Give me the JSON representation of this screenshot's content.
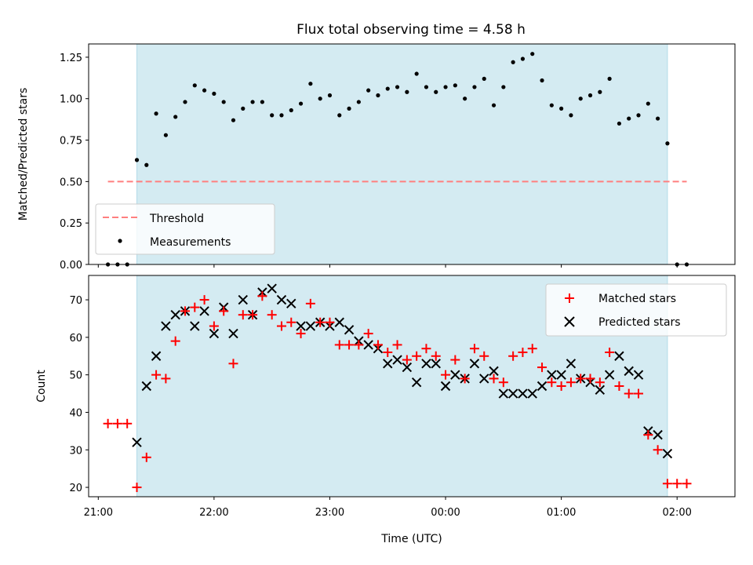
{
  "chart_data": {
    "type": "scatter",
    "title": "Flux total observing time = 4.58 h",
    "xlabel": "Time (UTC)",
    "x_ticks": [
      "21:00",
      "22:00",
      "23:00",
      "00:00",
      "01:00",
      "02:00"
    ],
    "x_range": [
      "20:55",
      "02:30"
    ],
    "shaded_interval": [
      "21:20",
      "01:55"
    ],
    "colors": {
      "shade": "#add8e6",
      "threshold": "#ff7f7f",
      "measurements": "#000000",
      "matched": "#ff0000",
      "predicted": "#000000"
    },
    "panels": [
      {
        "ylabel": "Matched/Predicted stars",
        "ylim": [
          0.0,
          1.33
        ],
        "y_ticks": [
          "0.00",
          "0.25",
          "0.50",
          "0.75",
          "1.00",
          "1.25"
        ],
        "legend": {
          "placement": "lower-left",
          "entries": [
            "Threshold",
            "Measurements"
          ]
        },
        "threshold": {
          "name": "Threshold",
          "y": 0.5,
          "x_start": "21:05",
          "x_end": "02:05"
        },
        "series": [
          {
            "name": "Measurements",
            "marker": "dot",
            "x": [
              "21:05",
              "21:10",
              "21:15",
              "21:20",
              "21:25",
              "21:30",
              "21:35",
              "21:40",
              "21:45",
              "21:50",
              "21:55",
              "22:00",
              "22:05",
              "22:10",
              "22:15",
              "22:20",
              "22:25",
              "22:30",
              "22:35",
              "22:40",
              "22:45",
              "22:50",
              "22:55",
              "23:00",
              "23:05",
              "23:10",
              "23:15",
              "23:20",
              "23:25",
              "23:30",
              "23:35",
              "23:40",
              "23:45",
              "23:50",
              "23:55",
              "00:00",
              "00:05",
              "00:10",
              "00:15",
              "00:20",
              "00:25",
              "00:30",
              "00:35",
              "00:40",
              "00:45",
              "00:50",
              "00:55",
              "01:00",
              "01:05",
              "01:10",
              "01:15",
              "01:20",
              "01:25",
              "01:30",
              "01:35",
              "01:40",
              "01:45",
              "01:50",
              "01:55",
              "02:00",
              "02:05"
            ],
            "y": [
              0.0,
              0.0,
              0.0,
              0.63,
              0.6,
              0.91,
              0.78,
              0.89,
              0.98,
              1.08,
              1.05,
              1.03,
              0.98,
              0.87,
              0.94,
              0.98,
              0.98,
              0.9,
              0.9,
              0.93,
              0.97,
              1.09,
              1.0,
              1.02,
              0.9,
              0.94,
              0.98,
              1.05,
              1.02,
              1.06,
              1.07,
              1.04,
              1.15,
              1.07,
              1.04,
              1.07,
              1.08,
              1.0,
              1.07,
              1.12,
              0.96,
              1.07,
              1.22,
              1.24,
              1.27,
              1.11,
              0.96,
              0.94,
              0.9,
              1.0,
              1.02,
              1.04,
              1.12,
              0.85,
              0.88,
              0.9,
              0.97,
              0.88,
              0.73,
              0.0,
              0.0
            ]
          }
        ]
      },
      {
        "ylabel": "Count",
        "ylim": [
          17.5,
          76.5
        ],
        "y_ticks": [
          "20",
          "30",
          "40",
          "50",
          "60",
          "70"
        ],
        "legend": {
          "placement": "top-right",
          "entries": [
            "Matched stars",
            "Predicted stars"
          ]
        },
        "series": [
          {
            "name": "Matched stars",
            "marker": "plus",
            "x": [
              "21:05",
              "21:10",
              "21:15",
              "21:20",
              "21:25",
              "21:30",
              "21:35",
              "21:40",
              "21:45",
              "21:50",
              "21:55",
              "22:00",
              "22:05",
              "22:10",
              "22:15",
              "22:20",
              "22:25",
              "22:30",
              "22:35",
              "22:40",
              "22:45",
              "22:50",
              "22:55",
              "23:00",
              "23:05",
              "23:10",
              "23:15",
              "23:20",
              "23:25",
              "23:30",
              "23:35",
              "23:40",
              "23:45",
              "23:50",
              "23:55",
              "00:00",
              "00:05",
              "00:10",
              "00:15",
              "00:20",
              "00:25",
              "00:30",
              "00:35",
              "00:40",
              "00:45",
              "00:50",
              "00:55",
              "01:00",
              "01:05",
              "01:10",
              "01:15",
              "01:20",
              "01:25",
              "01:30",
              "01:35",
              "01:40",
              "01:45",
              "01:50",
              "01:55",
              "02:00",
              "02:05"
            ],
            "y": [
              37,
              37,
              37,
              20,
              28,
              50,
              49,
              59,
              67,
              68,
              70,
              63,
              67,
              53,
              66,
              66,
              71,
              66,
              63,
              64,
              61,
              69,
              64,
              64,
              58,
              58,
              58,
              61,
              58,
              56,
              58,
              54,
              55,
              57,
              55,
              50,
              54,
              49,
              57,
              55,
              49,
              48,
              55,
              56,
              57,
              52,
              48,
              47,
              48,
              49,
              49,
              48,
              56,
              47,
              45,
              45,
              34,
              30,
              21,
              21,
              21
            ]
          },
          {
            "name": "Predicted stars",
            "marker": "x",
            "x": [
              "21:20",
              "21:25",
              "21:30",
              "21:35",
              "21:40",
              "21:45",
              "21:50",
              "21:55",
              "22:00",
              "22:05",
              "22:10",
              "22:15",
              "22:20",
              "22:25",
              "22:30",
              "22:35",
              "22:40",
              "22:45",
              "22:50",
              "22:55",
              "23:00",
              "23:05",
              "23:10",
              "23:15",
              "23:20",
              "23:25",
              "23:30",
              "23:35",
              "23:40",
              "23:45",
              "23:50",
              "23:55",
              "00:00",
              "00:05",
              "00:10",
              "00:15",
              "00:20",
              "00:25",
              "00:30",
              "00:35",
              "00:40",
              "00:45",
              "00:50",
              "00:55",
              "01:00",
              "01:05",
              "01:10",
              "01:15",
              "01:20",
              "01:25",
              "01:30",
              "01:35",
              "01:40",
              "01:45",
              "01:50",
              "01:55"
            ],
            "y": [
              32,
              47,
              55,
              63,
              66,
              67,
              63,
              67,
              61,
              68,
              61,
              70,
              66,
              72,
              73,
              70,
              69,
              63,
              63,
              64,
              63,
              64,
              62,
              59,
              58,
              57,
              53,
              54,
              52,
              48,
              53,
              53,
              47,
              50,
              49,
              53,
              49,
              51,
              45,
              45,
              45,
              45,
              47,
              50,
              50,
              53,
              49,
              48,
              46,
              50,
              55,
              51,
              50,
              35,
              34,
              29
            ]
          }
        ]
      }
    ]
  }
}
